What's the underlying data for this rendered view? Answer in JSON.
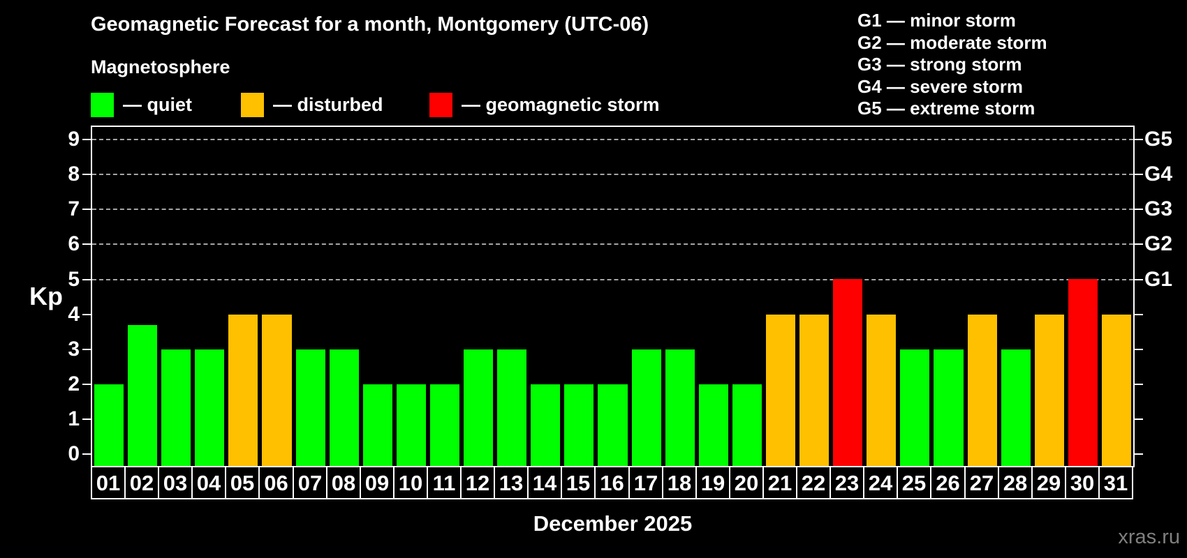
{
  "title": "Geomagnetic Forecast for a month, Montgomery (UTC-06)",
  "subtitle": "Magnetosphere",
  "watermark": "xras.ru",
  "colors": {
    "background": "#000000",
    "quiet": "#00ff00",
    "disturbed": "#ffc000",
    "storm": "#ff0000",
    "gridline": "#a6a6a6",
    "axis": "#ffffff",
    "watermark": "#7f7f7f"
  },
  "legend": {
    "quiet": {
      "label": "— quiet",
      "color_key": "quiet"
    },
    "disturbed": {
      "label": "— disturbed",
      "color_key": "disturbed"
    },
    "storm": {
      "label": "— geomagnetic storm",
      "color_key": "storm"
    }
  },
  "g_legend": {
    "items": [
      "G1 — minor storm",
      "G2 — moderate storm",
      "G3 — strong storm",
      "G4 — severe storm",
      "G5 — extreme storm"
    ]
  },
  "chart_data": {
    "type": "bar",
    "title": "Geomagnetic Forecast for a month, Montgomery (UTC-06)",
    "subtitle": "Magnetosphere",
    "xlabel": "December 2025",
    "ylabel": "Kp",
    "ylim": [
      -0.35,
      9.4
    ],
    "grid": "dashed horizontal at Kp 5-9 only",
    "legend_position": "top-left",
    "categories": [
      "01",
      "02",
      "03",
      "04",
      "05",
      "06",
      "07",
      "08",
      "09",
      "10",
      "11",
      "12",
      "13",
      "14",
      "15",
      "16",
      "17",
      "18",
      "19",
      "20",
      "21",
      "22",
      "23",
      "24",
      "25",
      "26",
      "27",
      "28",
      "29",
      "30",
      "31"
    ],
    "values": [
      2,
      3.7,
      3,
      3,
      4,
      4,
      3,
      3,
      2,
      2,
      2,
      3,
      3,
      2,
      2,
      2,
      3,
      3,
      2,
      2,
      4,
      4,
      5,
      4,
      3,
      3,
      4,
      3,
      4,
      5,
      4
    ],
    "statuses": [
      "quiet",
      "quiet",
      "quiet",
      "quiet",
      "disturbed",
      "disturbed",
      "quiet",
      "quiet",
      "quiet",
      "quiet",
      "quiet",
      "quiet",
      "quiet",
      "quiet",
      "quiet",
      "quiet",
      "quiet",
      "quiet",
      "quiet",
      "quiet",
      "disturbed",
      "disturbed",
      "storm",
      "disturbed",
      "quiet",
      "quiet",
      "disturbed",
      "quiet",
      "disturbed",
      "storm",
      "disturbed"
    ],
    "yticks": [
      0,
      1,
      2,
      3,
      4,
      5,
      6,
      7,
      8,
      9
    ],
    "gridlines_kp": [
      5,
      6,
      7,
      8,
      9
    ],
    "right_axis": [
      {
        "kp": 5,
        "label": "G1"
      },
      {
        "kp": 6,
        "label": "G2"
      },
      {
        "kp": 7,
        "label": "G3"
      },
      {
        "kp": 8,
        "label": "G4"
      },
      {
        "kp": 9,
        "label": "G5"
      }
    ]
  }
}
